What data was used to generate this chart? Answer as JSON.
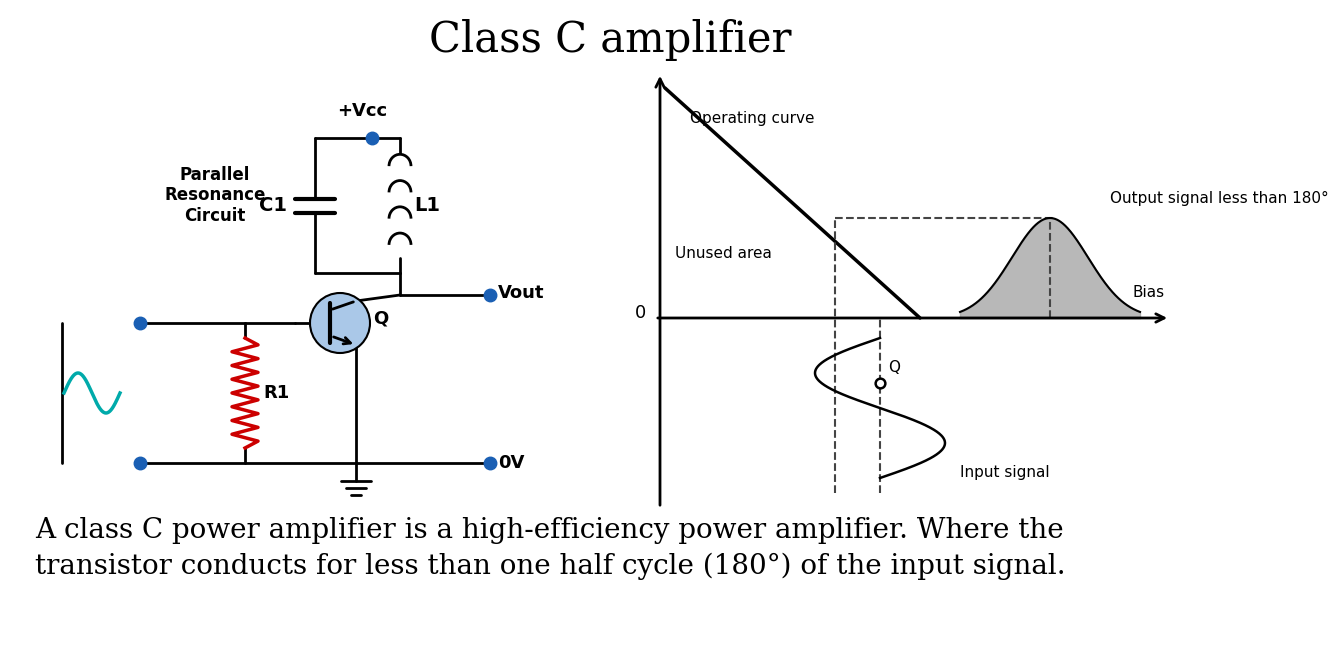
{
  "title": "Class C amplifier",
  "title_fontsize": 30,
  "title_font": "serif",
  "bg_color": "#ffffff",
  "description_line1": "A class C power amplifier is a high-efficiency power amplifier. Where the",
  "description_line2": "transistor conducts for less than one half cycle (180°) of the input signal.",
  "desc_fontsize": 20,
  "circuit_labels": {
    "vcc": "+Vcc",
    "c1": "C1",
    "l1": "L1",
    "q": "Q",
    "r1": "R1",
    "vout": "Vout",
    "ov": "0V",
    "prc": "Parallel\nResonance\nCircuit"
  },
  "graph_labels": {
    "operating_curve": "Operating curve",
    "unused_area": "Unused area",
    "output_signal": "Output signal less than 180°",
    "bias": "Bias",
    "zero": "0",
    "q_point": "Q",
    "input_signal": "Input signal"
  },
  "colors": {
    "black": "#000000",
    "blue_dot": "#1a5fb4",
    "red_resistor": "#cc0000",
    "cyan_source": "#00aaaa",
    "transistor_fill": "#aac8e8",
    "gray_fill": "#a0a0a0",
    "dashed_line": "#444444",
    "white": "#ffffff"
  }
}
